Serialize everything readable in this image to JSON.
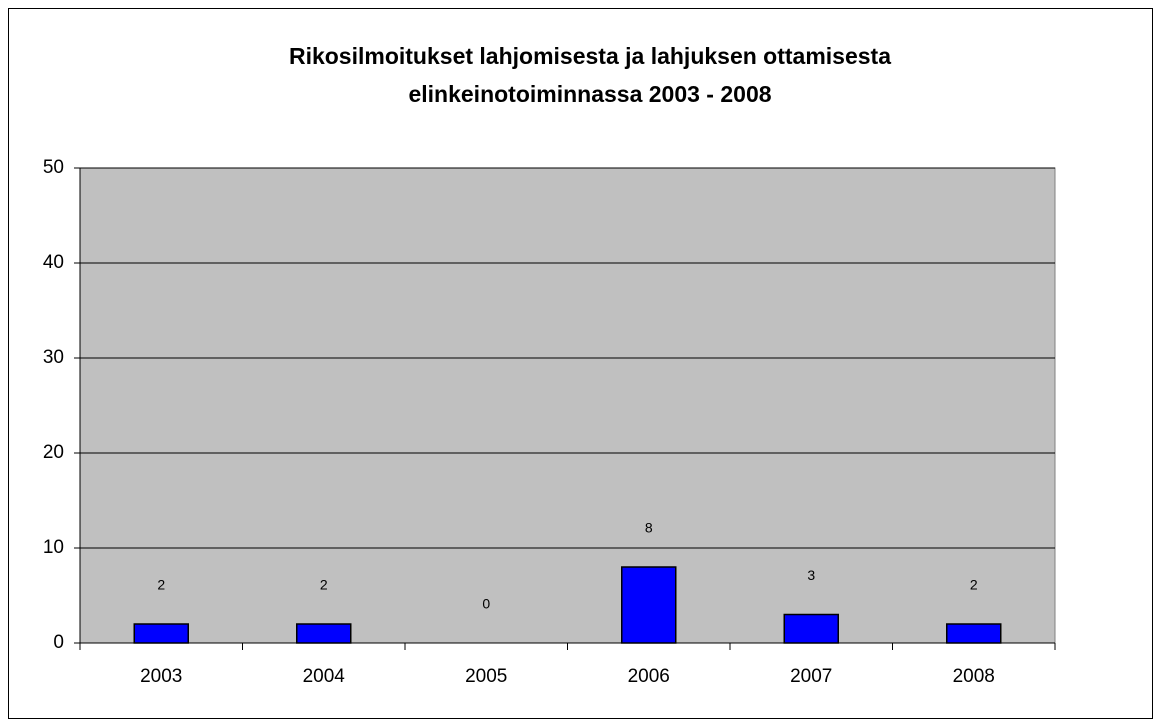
{
  "chart_data": {
    "type": "bar",
    "title": [
      "Rikosilmoitukset lahjomisesta ja lahjuksen ottamisesta",
      "elinkeinotoiminnassa  2003 - 2008"
    ],
    "categories": [
      "2003",
      "2004",
      "2005",
      "2006",
      "2007",
      "2008"
    ],
    "values": [
      2,
      2,
      0,
      8,
      3,
      2
    ],
    "color": "#0000ff",
    "plot_background": "#c0c0c0",
    "ylim": [
      0,
      50
    ],
    "yticks": [
      0,
      10,
      20,
      30,
      40,
      50
    ],
    "grid": true
  }
}
